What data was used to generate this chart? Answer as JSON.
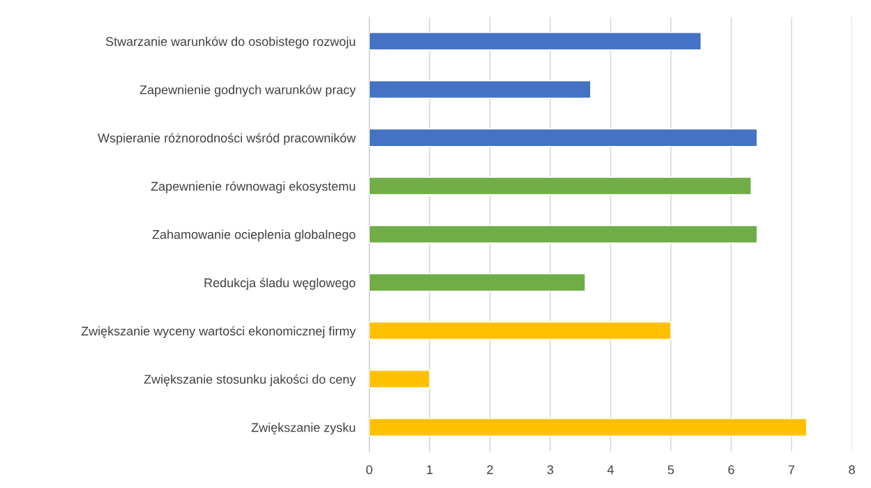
{
  "chart_data": {
    "type": "bar",
    "orientation": "horizontal",
    "categories": [
      "Stwarzanie warunków do osobistego rozwoju",
      "Zapewnienie godnych warunków pracy",
      "Wspieranie różnorodności wśród pracowników",
      "Zapewnienie równowagi ekosystemu",
      "Zahamowanie ocieplenia globalnego",
      "Redukcja śladu węglowego",
      "Zwiększanie wyceny wartości ekonomicznej firmy",
      "Zwiększanie stosunku jakości do ceny",
      "Zwiększanie zysku"
    ],
    "values": [
      5.5,
      3.67,
      6.43,
      6.33,
      6.43,
      3.58,
      5.0,
      1.0,
      7.25
    ],
    "colors": [
      "#4472c4",
      "#4472c4",
      "#4472c4",
      "#70ad47",
      "#70ad47",
      "#70ad47",
      "#ffc000",
      "#ffc000",
      "#ffc000"
    ],
    "xlim": [
      0,
      8
    ],
    "xticks": [
      0,
      1,
      2,
      3,
      4,
      5,
      6,
      7,
      8
    ],
    "grid": "x",
    "legend": false
  }
}
